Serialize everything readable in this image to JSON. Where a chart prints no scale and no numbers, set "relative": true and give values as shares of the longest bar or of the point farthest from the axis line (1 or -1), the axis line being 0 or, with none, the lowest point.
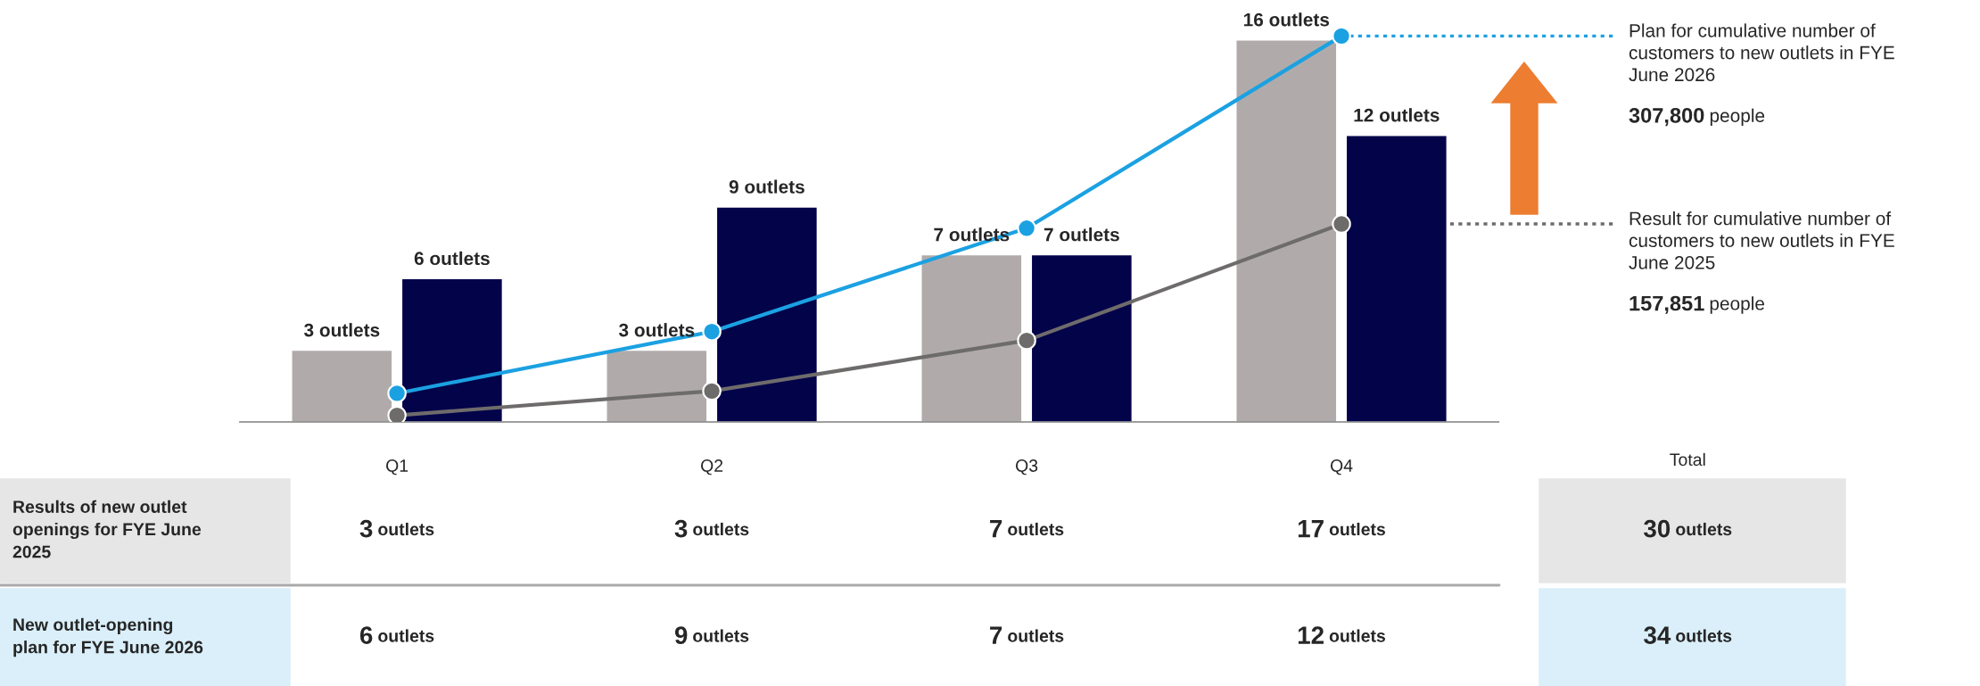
{
  "chart_data": [
    {
      "type": "bar",
      "categories": [
        "Q1",
        "Q2",
        "Q3",
        "Q4"
      ],
      "tick_labels": "x",
      "grid": false,
      "series": [
        {
          "color": "#b0abaa",
          "values": [
            3,
            3,
            7,
            16
          ],
          "value_labels": [
            "3 outlets",
            "3 outlets",
            "7 outlets",
            "16 outlets"
          ]
        },
        {
          "color": "#03034a",
          "values": [
            6,
            9,
            7,
            12
          ],
          "value_labels": [
            "6 outlets",
            "9 outlets",
            "7 outlets",
            "12 outlets"
          ]
        }
      ]
    },
    {
      "type": "line",
      "categories": [
        null,
        null,
        null,
        null
      ],
      "relative": true,
      "tick_labels": false,
      "marker": "circle",
      "series": [
        {
          "color": "#1ba1e2",
          "values": [
            0.074,
            0.234,
            0.502,
            1
          ]
        },
        {
          "color": "#6e6b6b",
          "values": [
            0.017,
            0.08,
            0.211,
            0.513
          ]
        }
      ],
      "annotations": [
        "Plan for cumulative number of\ncustomers to new outlets in FYE\nJune 2026",
        "307,800 people",
        "Result for cumulative number of\ncustomers to new outlets in FYE\nJune 2025",
        "157,851 people"
      ]
    },
    {
      "type": "other",
      "annotations": [
        "Total",
        "Results of new outlet\nopenings for FYE June\n2025",
        "3 outlets",
        "3 outlets",
        "7 outlets",
        "17 outlets",
        "30 outlets",
        "New outlet-opening\nplan for FYE June 2026",
        "6 outlets",
        "9 outlets",
        "7 outlets",
        "12 outlets",
        "34 outlets"
      ]
    }
  ]
}
